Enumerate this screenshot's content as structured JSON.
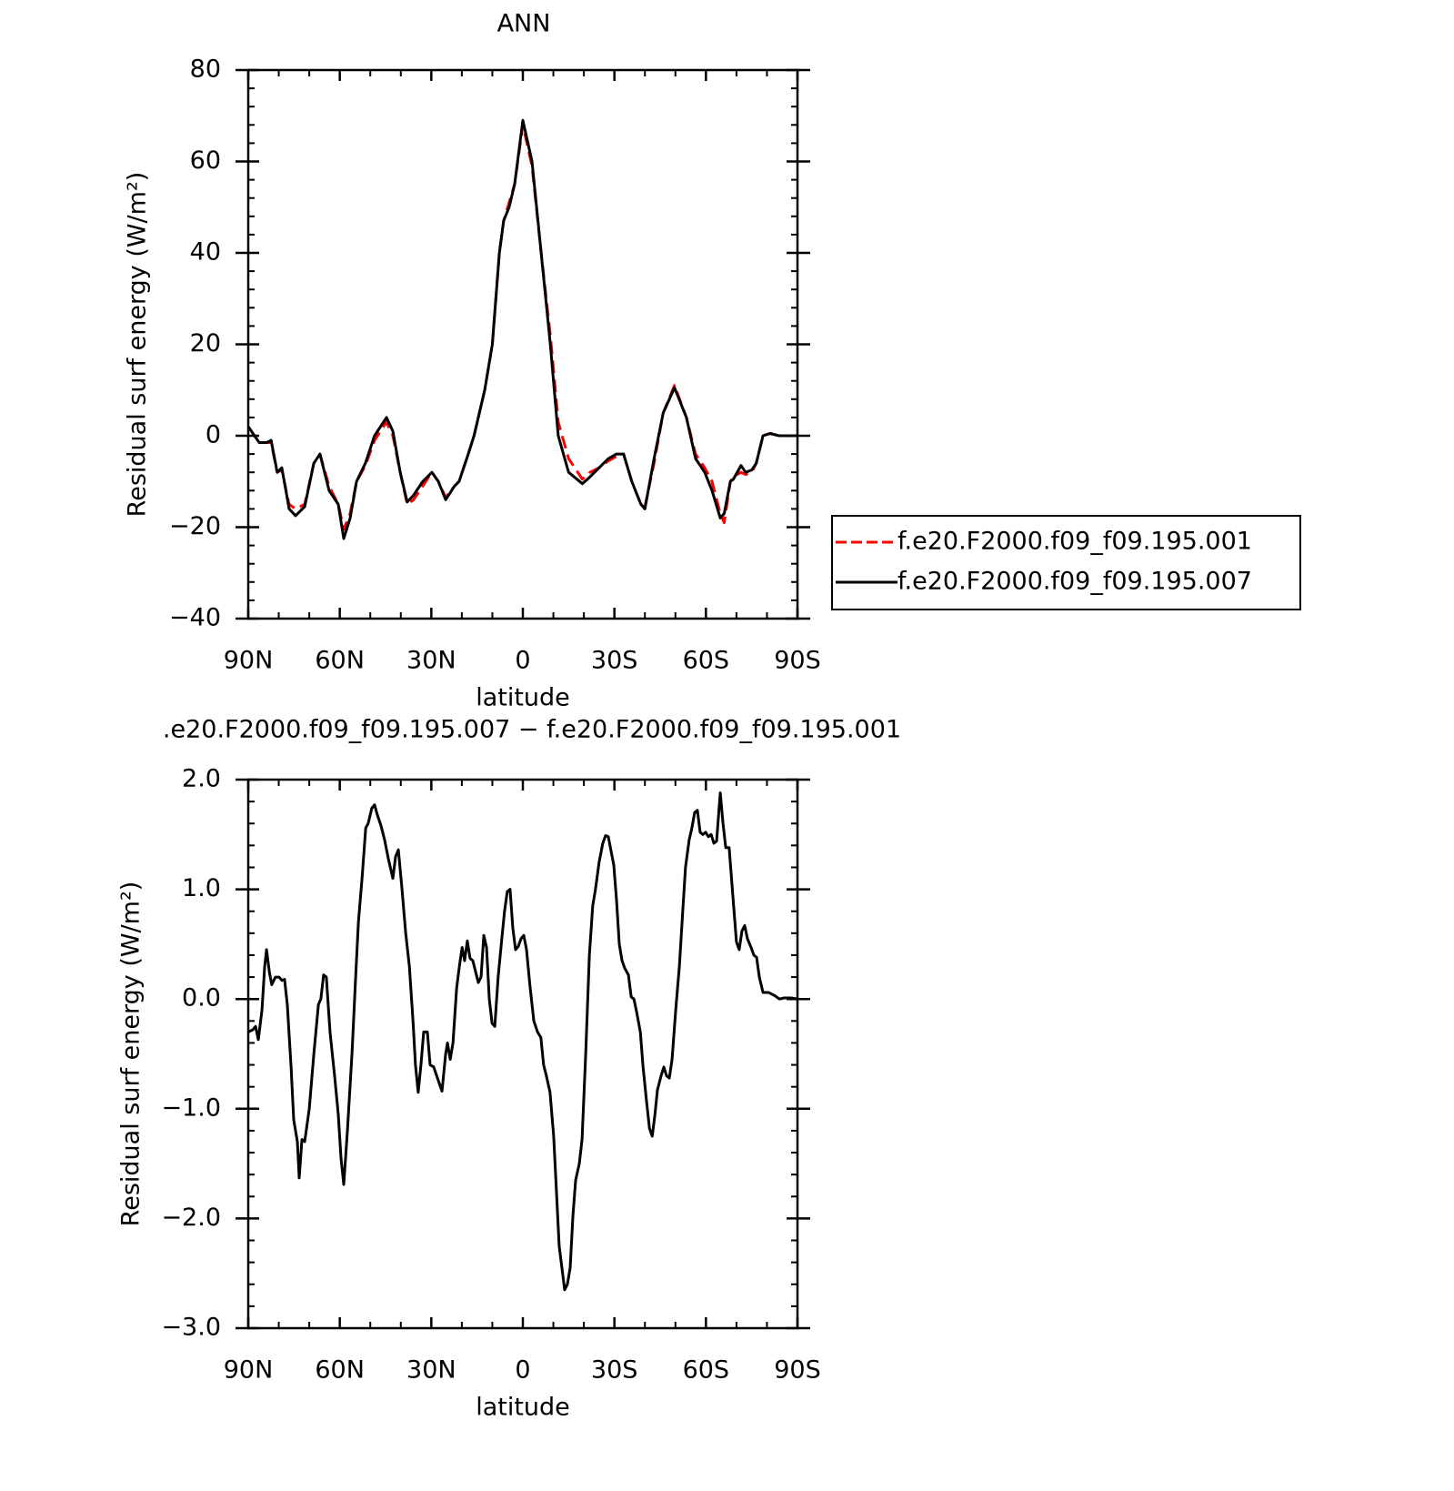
{
  "chart_data": [
    {
      "type": "line",
      "title": "ANN",
      "xlabel": "latitude",
      "ylabel": "Residual surf energy (W/m²)",
      "xlim": [
        90,
        -90
      ],
      "ylim": [
        -40,
        80
      ],
      "xticks": [
        {
          "value": 90,
          "label": "90N"
        },
        {
          "value": 60,
          "label": "60N"
        },
        {
          "value": 30,
          "label": "30N"
        },
        0,
        {
          "value": -30,
          "label": "30S"
        },
        {
          "value": -60,
          "label": "60S"
        },
        {
          "value": -90,
          "label": "90S"
        }
      ],
      "yticks": [
        {
          "value": -40,
          "label": "−40"
        },
        {
          "value": -20,
          "label": "−20"
        },
        0,
        20,
        40,
        60,
        80
      ],
      "legend": "right",
      "x": [
        90,
        86.4,
        84,
        82.5,
        80.5,
        79,
        76.6,
        74.5,
        71.5,
        68.5,
        66.5,
        63.5,
        60.5,
        58.7,
        56.6,
        54.5,
        51.6,
        48.6,
        44.7,
        42.6,
        40.2,
        37.9,
        35.8,
        32.8,
        29.8,
        27.7,
        25.3,
        22.4,
        20.9,
        17.9,
        16,
        12.5,
        10,
        7.7,
        6.3,
        4.5,
        2.7,
        0,
        -3,
        -6,
        -9,
        -11.6,
        -15,
        -19.5,
        -22,
        -25,
        -28,
        -30.7,
        -33,
        -35.7,
        -38.7,
        -40,
        -43,
        -46,
        -49.7,
        -53.6,
        -56.6,
        -59.6,
        -62,
        -64.7,
        -66,
        -68,
        -69,
        -71.5,
        -73,
        -75,
        -76.5,
        -78.7,
        -81,
        -84,
        -90
      ],
      "series": [
        {
          "name": "f.e20.F2000.f09_f09.195.001",
          "color": "#ff0000",
          "style": "dashed",
          "values": [
            2,
            -1.5,
            -1.5,
            -1.5,
            -8,
            -7.5,
            -15,
            -16,
            -15,
            -6,
            -4,
            -11,
            -15,
            -20.5,
            -17,
            -10,
            -6.5,
            -1,
            3,
            0,
            -8,
            -15,
            -14,
            -11,
            -8,
            -10,
            -13.5,
            -11,
            -10,
            -4,
            0,
            10,
            20,
            40,
            47,
            51,
            55,
            68,
            59,
            40,
            22,
            3,
            -5,
            -9.5,
            -8,
            -7,
            -5.5,
            -4.5,
            -4,
            -10,
            -15,
            -15.5,
            -6,
            5,
            11,
            4,
            -4,
            -7,
            -10,
            -17,
            -19,
            -10,
            -9,
            -8,
            -8.5,
            -8,
            -6,
            0,
            0.5,
            0,
            0
          ]
        },
        {
          "name": "f.e20.F2000.f09_f09.195.007",
          "color": "#000000",
          "style": "solid",
          "values": [
            2,
            -1.5,
            -1.5,
            -1,
            -8,
            -7,
            -16,
            -17.5,
            -15.5,
            -6,
            -4,
            -12,
            -15,
            -22.5,
            -18,
            -10,
            -6,
            0,
            4,
            1,
            -8,
            -14.5,
            -13,
            -10,
            -8,
            -10,
            -14,
            -11,
            -10,
            -4,
            0,
            10,
            20,
            40,
            47,
            50,
            55,
            69,
            60,
            40,
            20,
            0,
            -8,
            -10.5,
            -9,
            -7,
            -5,
            -4,
            -4,
            -10,
            -15,
            -16,
            -5,
            5,
            10.5,
            4,
            -5,
            -8,
            -12,
            -18,
            -17,
            -10,
            -9.5,
            -6.5,
            -8,
            -7.5,
            -6,
            0,
            0.5,
            0,
            0
          ]
        }
      ]
    },
    {
      "type": "line",
      "title": ".e20.F2000.f09_f09.195.007 − f.e20.F2000.f09_f09.195.001",
      "xlabel": "latitude",
      "ylabel": "Residual surf energy (W/m²)",
      "xlim": [
        90,
        -90
      ],
      "ylim": [
        -3,
        2
      ],
      "xticks": [
        {
          "value": 90,
          "label": "90N"
        },
        {
          "value": 60,
          "label": "60N"
        },
        {
          "value": 30,
          "label": "30N"
        },
        0,
        {
          "value": -30,
          "label": "30S"
        },
        {
          "value": -60,
          "label": "60S"
        },
        {
          "value": -90,
          "label": "90S"
        }
      ],
      "yticks": [
        {
          "value": -3,
          "label": "−3.0"
        },
        {
          "value": -2,
          "label": "−2.0"
        },
        {
          "value": -1,
          "label": "−1.0"
        },
        {
          "value": 0,
          "label": "0.0"
        },
        {
          "value": 1,
          "label": "1.0"
        },
        {
          "value": 2,
          "label": "2.0"
        }
      ],
      "x": [
        90,
        88.5,
        87.6,
        86.7,
        85.5,
        84.6,
        84.0,
        83.1,
        82.3,
        81.1,
        79.9,
        79.0,
        78.1,
        77.2,
        76.0,
        75.1,
        73.9,
        73.3,
        72.4,
        71.5,
        70.0,
        68.5,
        67.0,
        66.2,
        65.3,
        64.4,
        63.2,
        61.7,
        60.5,
        59.6,
        58.7,
        57.5,
        56.0,
        54.8,
        53.9,
        52.7,
        51.5,
        50.7,
        49.5,
        48.6,
        47.7,
        46.5,
        45.3,
        44.1,
        42.6,
        41.7,
        40.8,
        39.6,
        38.4,
        37.2,
        36.0,
        35.2,
        34.3,
        33.4,
        32.5,
        31.3,
        30.4,
        29.2,
        28.0,
        26.5,
        25.3,
        24.7,
        23.8,
        22.9,
        21.7,
        20.8,
        19.9,
        19.1,
        18.2,
        17.3,
        16.4,
        15.5,
        14.6,
        13.7,
        12.8,
        11.9,
        11.0,
        10.1,
        9.2,
        8.1,
        6.9,
        6.0,
        5.1,
        4.2,
        3.3,
        2.4,
        1.5,
        0.6,
        -0.3,
        -1.2,
        -2.4,
        -3.6,
        -4.8,
        -5.9,
        -6.8,
        -7.7,
        -8.9,
        -10.1,
        -11.0,
        -11.9,
        -12.8,
        -13.7,
        -14.6,
        -15.5,
        -16.4,
        -17.3,
        -18.5,
        -19.4,
        -20.6,
        -21.8,
        -22.9,
        -23.8,
        -25.0,
        -26.2,
        -27.1,
        -28.0,
        -28.9,
        -29.8,
        -30.7,
        -31.6,
        -32.5,
        -33.4,
        -34.6,
        -35.5,
        -36.4,
        -37.3,
        -38.5,
        -39.4,
        -40.6,
        -41.5,
        -42.4,
        -43.3,
        -44.1,
        -45.3,
        -46.2,
        -47.1,
        -48.0,
        -48.9,
        -50.1,
        -51.3,
        -52.4,
        -53.3,
        -54.5,
        -55.4,
        -56.3,
        -57.2,
        -58.1,
        -59.0,
        -59.9,
        -60.8,
        -61.7,
        -62.6,
        -63.5,
        -64.7,
        -65.6,
        -66.5,
        -67.6,
        -68.8,
        -70.0,
        -70.9,
        -71.8,
        -72.7,
        -73.6,
        -74.8,
        -75.7,
        -76.6,
        -77.5,
        -78.7,
        -80.5,
        -82.6,
        -84.1,
        -85.6,
        -88.0,
        -90
      ],
      "series": [
        {
          "color": "#000000",
          "style": "solid",
          "values": [
            -0.3,
            -0.28,
            -0.25,
            -0.37,
            -0.1,
            0.3,
            0.45,
            0.25,
            0.13,
            0.2,
            0.2,
            0.17,
            0.18,
            -0.05,
            -0.6,
            -1.1,
            -1.3,
            -1.63,
            -1.28,
            -1.3,
            -1.0,
            -0.5,
            -0.05,
            0.0,
            0.22,
            0.2,
            -0.3,
            -0.7,
            -1.05,
            -1.45,
            -1.69,
            -1.2,
            -0.5,
            0.2,
            0.7,
            1.1,
            1.56,
            1.6,
            1.74,
            1.77,
            1.68,
            1.58,
            1.45,
            1.28,
            1.1,
            1.3,
            1.36,
            1.0,
            0.6,
            0.3,
            -0.2,
            -0.6,
            -0.85,
            -0.6,
            -0.3,
            -0.3,
            -0.6,
            -0.62,
            -0.72,
            -0.84,
            -0.5,
            -0.4,
            -0.55,
            -0.4,
            0.1,
            0.3,
            0.47,
            0.35,
            0.53,
            0.37,
            0.35,
            0.25,
            0.15,
            0.2,
            0.58,
            0.47,
            0.0,
            -0.22,
            -0.25,
            0.2,
            0.55,
            0.8,
            0.98,
            1.0,
            0.65,
            0.45,
            0.48,
            0.55,
            0.58,
            0.45,
            0.1,
            -0.2,
            -0.3,
            -0.35,
            -0.6,
            -0.7,
            -0.85,
            -1.25,
            -1.75,
            -2.25,
            -2.45,
            -2.65,
            -2.6,
            -2.45,
            -1.98,
            -1.65,
            -1.5,
            -1.28,
            -0.5,
            0.4,
            0.85,
            1.0,
            1.25,
            1.42,
            1.49,
            1.48,
            1.35,
            1.22,
            0.9,
            0.5,
            0.35,
            0.28,
            0.22,
            0.02,
            0.0,
            -0.12,
            -0.3,
            -0.62,
            -0.95,
            -1.18,
            -1.25,
            -1.05,
            -0.83,
            -0.7,
            -0.62,
            -0.7,
            -0.72,
            -0.55,
            -0.1,
            0.3,
            0.8,
            1.2,
            1.45,
            1.56,
            1.7,
            1.72,
            1.52,
            1.5,
            1.52,
            1.48,
            1.5,
            1.42,
            1.44,
            1.88,
            1.6,
            1.38,
            1.38,
            0.95,
            0.52,
            0.45,
            0.62,
            0.67,
            0.55,
            0.47,
            0.4,
            0.38,
            0.2,
            0.06,
            0.06,
            0.03,
            0.0,
            0.01,
            0.01,
            0.0
          ]
        }
      ]
    }
  ]
}
